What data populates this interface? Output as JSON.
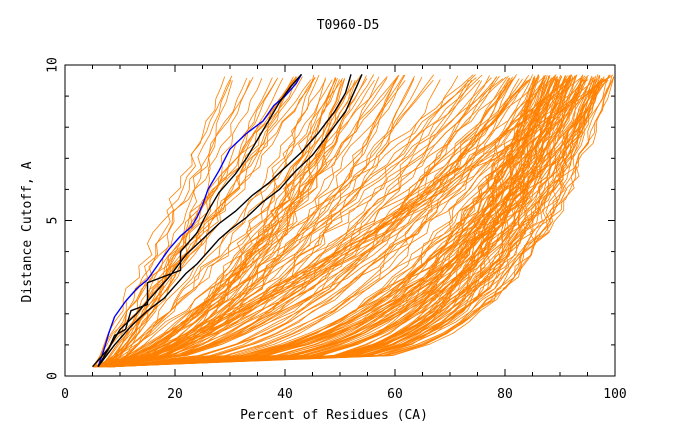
{
  "chart_data": {
    "type": "line",
    "title": "T0960-D5",
    "xlabel": "Percent of Residues (CA)",
    "ylabel": "Distance Cutoff, A",
    "xlim": [
      0,
      100
    ],
    "ylim": [
      0,
      10
    ],
    "x_ticks": [
      "0",
      "20",
      "40",
      "60",
      "80",
      "100"
    ],
    "y_ticks": [
      "0",
      "5",
      "10"
    ],
    "grid": false,
    "colors": {
      "background_models": "#ff8000",
      "highlight_blue": "#0000ff",
      "highlight_black": "#000000"
    },
    "highlight_series": [
      {
        "color": "#0000ff",
        "x": [
          6,
          7,
          8,
          9,
          11,
          13,
          15,
          17,
          19,
          21,
          23,
          24,
          25,
          26,
          28,
          30,
          33,
          36,
          38,
          40,
          42,
          43
        ],
        "y": [
          0.3,
          0.8,
          1.4,
          1.9,
          2.4,
          2.8,
          3.1,
          3.6,
          4.1,
          4.5,
          4.8,
          5.1,
          5.5,
          6.0,
          6.6,
          7.3,
          7.8,
          8.2,
          8.7,
          9.0,
          9.4,
          9.7
        ]
      },
      {
        "color": "#000000",
        "x": [
          6,
          8,
          9,
          11,
          12,
          15,
          15,
          18,
          21,
          21,
          24,
          26,
          28,
          31,
          33,
          35,
          37,
          39,
          41,
          43
        ],
        "y": [
          0.3,
          0.9,
          1.3,
          1.5,
          2.1,
          2.3,
          3.0,
          3.2,
          3.4,
          4.0,
          4.6,
          5.3,
          5.9,
          6.5,
          7.0,
          7.6,
          8.2,
          8.8,
          9.3,
          9.7
        ]
      },
      {
        "color": "#000000",
        "x": [
          6,
          9,
          12,
          15,
          18,
          20,
          22,
          24,
          26,
          28,
          30,
          33,
          36,
          39,
          42,
          45,
          48,
          51,
          54
        ],
        "y": [
          0.3,
          1.0,
          1.6,
          2.1,
          2.5,
          2.9,
          3.3,
          3.6,
          4.0,
          4.4,
          4.7,
          5.1,
          5.6,
          6.0,
          6.6,
          7.1,
          7.8,
          8.5,
          9.7
        ]
      },
      {
        "color": "#000000",
        "x": [
          5,
          8,
          10,
          13,
          16,
          19,
          22,
          25,
          28,
          31,
          34,
          37,
          40,
          43,
          46,
          49,
          51,
          52
        ],
        "y": [
          0.3,
          0.9,
          1.5,
          2.0,
          2.6,
          3.2,
          3.9,
          4.4,
          4.9,
          5.3,
          5.8,
          6.2,
          6.7,
          7.2,
          7.8,
          8.5,
          9.1,
          9.7
        ]
      }
    ]
  }
}
